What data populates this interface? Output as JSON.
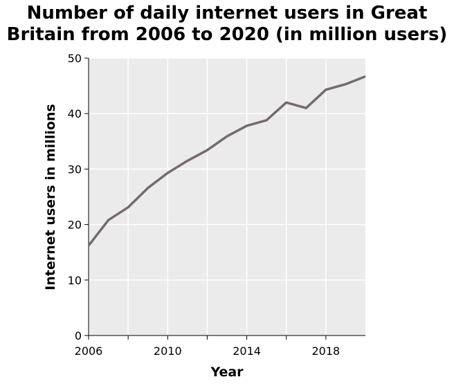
{
  "chart_data": {
    "type": "line",
    "title_lines": [
      "Number of daily internet users in Great",
      "Britain from 2006 to 2020 (in million users)"
    ],
    "xlabel": "Year",
    "ylabel": "Internet users in millions",
    "xlim": [
      2006,
      2020
    ],
    "ylim": [
      0,
      50
    ],
    "x_ticks": [
      2006,
      2008,
      2010,
      2012,
      2014,
      2016,
      2018
    ],
    "x_tick_labels": [
      "2006",
      "2010",
      "2014",
      "2018"
    ],
    "x_tick_labels_at": [
      2006,
      2010,
      2014,
      2018
    ],
    "y_ticks": [
      0,
      10,
      20,
      30,
      40,
      50
    ],
    "y_tick_labels": [
      "0",
      "10",
      "20",
      "30",
      "40",
      "50"
    ],
    "grid": true,
    "line_color": "#756b6b",
    "series": [
      {
        "x": [
          2006,
          2007,
          2008,
          2009,
          2010,
          2011,
          2012,
          2013,
          2014,
          2015,
          2016,
          2017,
          2018,
          2019,
          2020
        ],
        "values": [
          16.2,
          20.8,
          23.1,
          26.6,
          29.3,
          31.5,
          33.4,
          35.9,
          37.8,
          38.8,
          42.0,
          41.0,
          44.3,
          45.3,
          46.7
        ]
      }
    ]
  }
}
